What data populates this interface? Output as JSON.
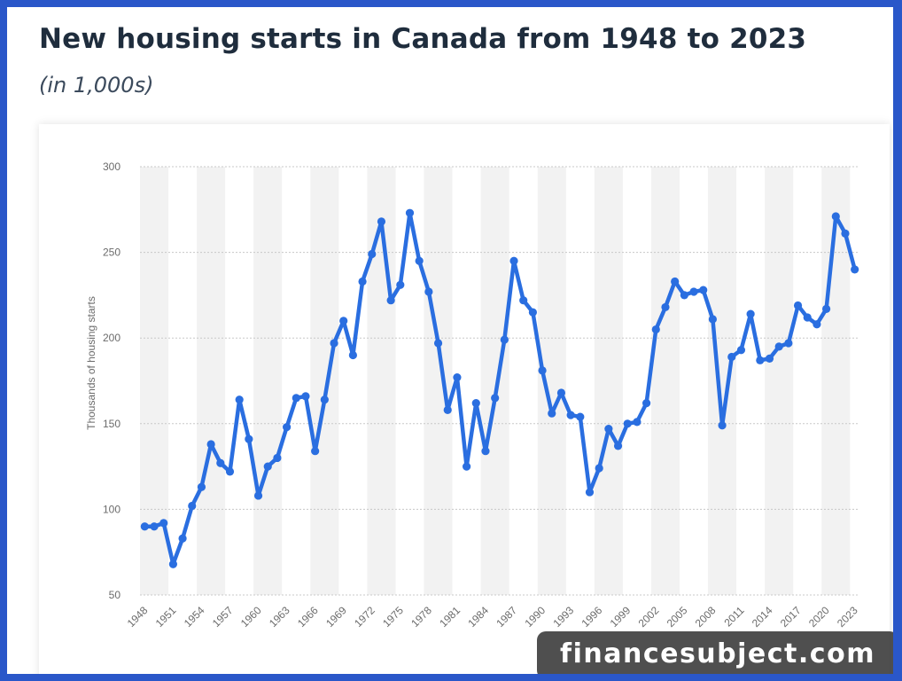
{
  "page": {
    "title": "New housing starts in Canada from 1948 to 2023",
    "subtitle": "(in 1,000s)"
  },
  "watermark": {
    "text": "financesubject.com"
  },
  "colors": {
    "line": "#2a6ee0",
    "band": "#f2f2f2",
    "grid": "#c8c8c8",
    "frame": "#2a57c9"
  },
  "chart_data": {
    "type": "line",
    "ylabel": "Thousands of housing starts",
    "xlabel": "",
    "ylim": [
      50,
      300
    ],
    "yticks": [
      50,
      100,
      150,
      200,
      250,
      300
    ],
    "xtick_labels": [
      "1948",
      "1951",
      "1954",
      "1957",
      "1960",
      "1963",
      "1966",
      "1969",
      "1972",
      "1975",
      "1978",
      "1981",
      "1984",
      "1987",
      "1990",
      "1993",
      "1996",
      "1999",
      "2002",
      "2005",
      "2008",
      "2011",
      "2014",
      "2017",
      "2020",
      "2023"
    ],
    "grid": true,
    "alternating_bands": true,
    "x": [
      1948,
      1949,
      1950,
      1951,
      1952,
      1953,
      1954,
      1955,
      1956,
      1957,
      1958,
      1959,
      1960,
      1961,
      1962,
      1963,
      1964,
      1965,
      1966,
      1967,
      1968,
      1969,
      1970,
      1971,
      1972,
      1973,
      1974,
      1975,
      1976,
      1977,
      1978,
      1979,
      1980,
      1981,
      1982,
      1983,
      1984,
      1985,
      1986,
      1987,
      1988,
      1989,
      1990,
      1991,
      1992,
      1993,
      1994,
      1995,
      1996,
      1997,
      1998,
      1999,
      2000,
      2001,
      2002,
      2003,
      2004,
      2005,
      2006,
      2007,
      2008,
      2009,
      2010,
      2011,
      2012,
      2013,
      2014,
      2015,
      2016,
      2017,
      2018,
      2019,
      2020,
      2021,
      2022,
      2023
    ],
    "series": [
      {
        "values": [
          90,
          90,
          92,
          68,
          83,
          102,
          113,
          138,
          127,
          122,
          164,
          141,
          108,
          125,
          130,
          148,
          165,
          166,
          134,
          164,
          197,
          210,
          190,
          233,
          249,
          268,
          222,
          231,
          273,
          245,
          227,
          197,
          158,
          177,
          125,
          162,
          134,
          165,
          199,
          245,
          222,
          215,
          181,
          156,
          168,
          155,
          154,
          110,
          124,
          147,
          137,
          150,
          151,
          162,
          205,
          218,
          233,
          225,
          227,
          228,
          211,
          149,
          189,
          193,
          214,
          187,
          188,
          195,
          197,
          219,
          212,
          208,
          217,
          271,
          261,
          240
        ]
      }
    ]
  }
}
